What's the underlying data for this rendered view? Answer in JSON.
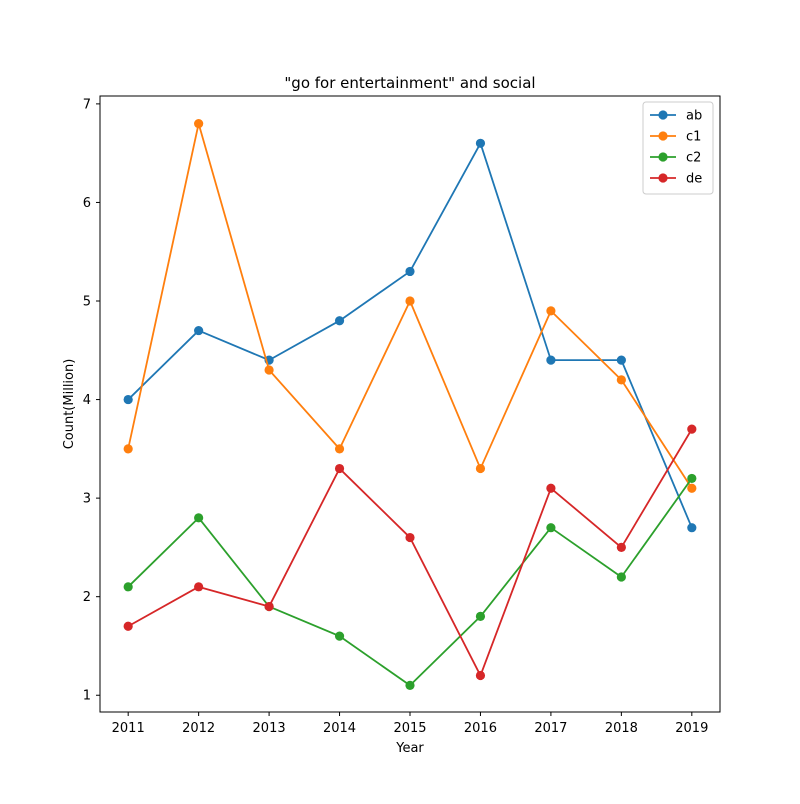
{
  "chart_data": {
    "type": "line",
    "title": "\"go for entertainment\" and social",
    "xlabel": "Year",
    "ylabel": "Count(Million)",
    "x": [
      2011,
      2012,
      2013,
      2014,
      2015,
      2016,
      2017,
      2018,
      2019
    ],
    "xlim": [
      2010.6,
      2019.4
    ],
    "ylim": [
      0.83,
      7.08
    ],
    "yticks": [
      1,
      2,
      3,
      4,
      5,
      6,
      7
    ],
    "grid": false,
    "legend_position": "top-right",
    "series": [
      {
        "name": "ab",
        "color": "#1f77b4",
        "values": [
          4.0,
          4.7,
          4.4,
          4.8,
          5.3,
          6.6,
          4.4,
          4.4,
          2.7
        ]
      },
      {
        "name": "c1",
        "color": "#ff7f0e",
        "values": [
          3.5,
          6.8,
          4.3,
          3.5,
          5.0,
          3.3,
          4.9,
          4.2,
          3.1
        ]
      },
      {
        "name": "c2",
        "color": "#2ca02c",
        "values": [
          2.1,
          2.8,
          1.9,
          1.6,
          1.1,
          1.8,
          2.7,
          2.2,
          3.2
        ]
      },
      {
        "name": "de",
        "color": "#d62728",
        "values": [
          1.7,
          2.1,
          1.9,
          3.3,
          2.6,
          1.2,
          3.1,
          2.5,
          3.7
        ]
      }
    ]
  }
}
